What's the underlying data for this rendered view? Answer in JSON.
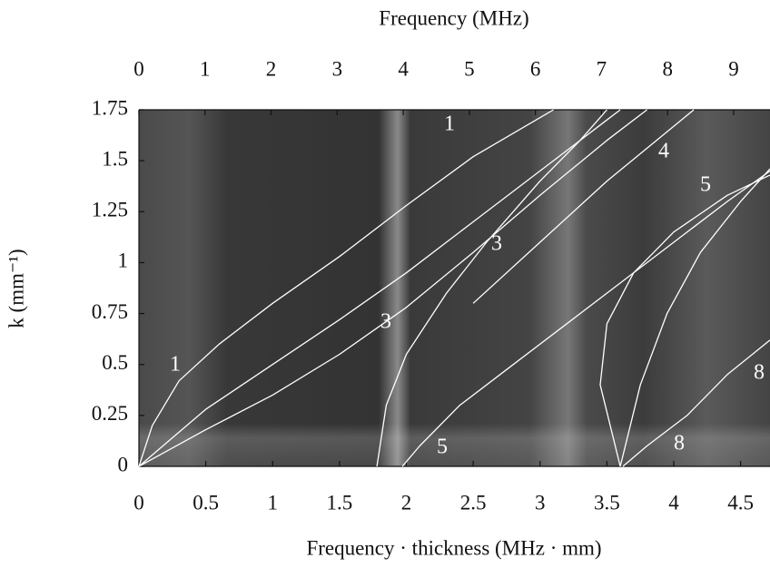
{
  "chart_data": {
    "type": "line",
    "title": "Frequency (MHz)",
    "xlabel": "Frequency · thickness (MHz · mm)",
    "ylabel": "k (mm⁻¹)",
    "xlim": [
      0,
      4.72
    ],
    "xticks": [
      0,
      0.5,
      1,
      1.5,
      2,
      2.5,
      3,
      3.5,
      4,
      4.5
    ],
    "ylim": [
      0,
      1.75
    ],
    "yticks": [
      0,
      0.25,
      0.5,
      0.75,
      1,
      1.25,
      1.5,
      1.75
    ],
    "x2lim": [
      0,
      9.55
    ],
    "x2ticks": [
      0,
      1,
      2,
      3,
      4,
      5,
      6,
      7,
      8,
      9
    ],
    "grid": false,
    "color": "#ffffff",
    "series": [
      {
        "x": [
          0,
          0.1,
          0.3,
          0.6,
          1,
          1.5,
          2,
          2.5,
          3.1
        ],
        "values": [
          0,
          0.2,
          0.42,
          0.6,
          0.8,
          1.03,
          1.28,
          1.52,
          1.75
        ]
      },
      {
        "x": [
          0,
          0.5,
          1,
          1.5,
          2,
          2.5,
          3,
          3.5,
          3.6
        ],
        "values": [
          0,
          0.28,
          0.5,
          0.72,
          0.95,
          1.2,
          1.45,
          1.7,
          1.75
        ]
      },
      {
        "x": [
          0,
          0.5,
          1,
          1.5,
          2,
          2.5,
          3,
          3.5,
          3.8
        ],
        "values": [
          0,
          0.18,
          0.35,
          0.55,
          0.78,
          1.05,
          1.33,
          1.6,
          1.75
        ]
      },
      {
        "x": [
          1.78,
          1.85,
          2,
          2.3,
          2.6,
          3,
          3.3,
          3.5
        ],
        "values": [
          0,
          0.3,
          0.55,
          0.85,
          1.1,
          1.4,
          1.6,
          1.75
        ]
      },
      {
        "x": [
          2.5,
          3,
          3.5,
          4.15
        ],
        "values": [
          0.8,
          1.1,
          1.4,
          1.75
        ]
      },
      {
        "x": [
          1.97,
          2.1,
          2.4,
          2.8,
          3.2,
          3.6,
          4,
          4.4,
          4.72
        ],
        "values": [
          0,
          0.1,
          0.3,
          0.5,
          0.7,
          0.9,
          1.1,
          1.3,
          1.45
        ]
      },
      {
        "x": [
          3.6,
          3.45,
          3.5,
          3.7,
          4,
          4.4,
          4.72
        ],
        "values": [
          0,
          0.4,
          0.7,
          0.95,
          1.15,
          1.33,
          1.43
        ]
      },
      {
        "x": [
          3.6,
          3.75,
          3.95,
          4.2,
          4.5,
          4.72
        ],
        "values": [
          0,
          0.4,
          0.75,
          1.05,
          1.3,
          1.46
        ]
      },
      {
        "x": [
          3.62,
          3.8,
          4.1,
          4.4,
          4.72
        ],
        "values": [
          0,
          0.1,
          0.25,
          0.45,
          0.62
        ]
      }
    ],
    "annotations": [
      "1",
      "1",
      "3",
      "3",
      "4",
      "5",
      "5",
      "8",
      "8"
    ]
  }
}
